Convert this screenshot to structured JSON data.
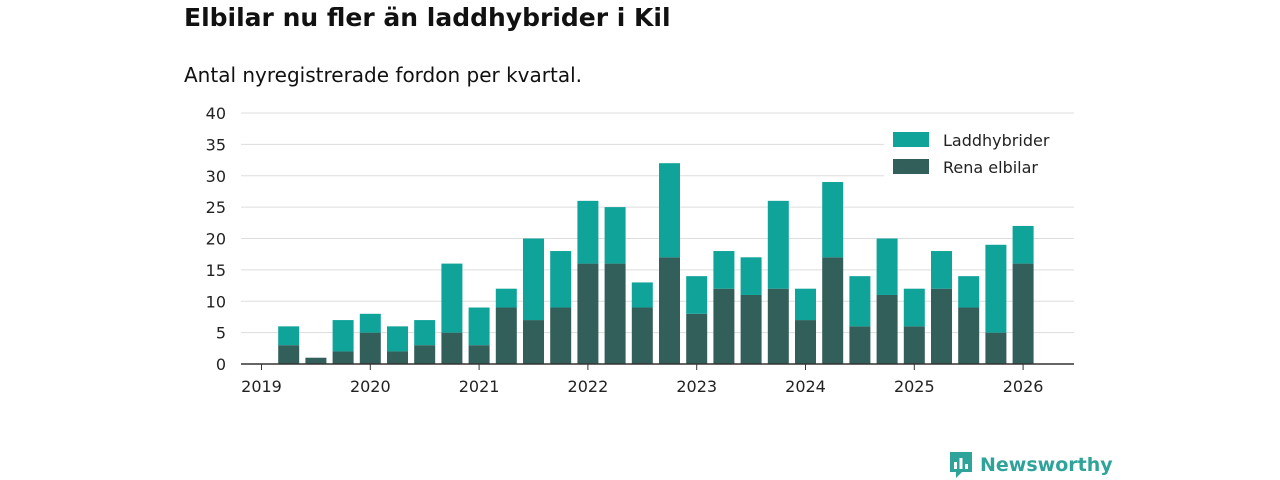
{
  "title": "Elbilar nu fler än laddhybrider i Kil",
  "subtitle": "Antal nyregistrerade fordon per kvartal.",
  "brand": {
    "name": "Newsworthy",
    "logo_icon": "newsworthy-logo-icon",
    "color": "#2ea39a"
  },
  "chart_data": {
    "type": "bar",
    "stacked": true,
    "title": "Elbilar nu fler än laddhybrider i Kil",
    "subtitle": "Antal nyregistrerade fordon per kvartal.",
    "xlabel": "",
    "ylabel": "",
    "ylim": [
      0,
      40
    ],
    "yticks": [
      0,
      5,
      10,
      15,
      20,
      25,
      30,
      35,
      40
    ],
    "grid": true,
    "legend_position": "top-right",
    "x_tick_labels": [
      {
        "label": "2019",
        "quarter_index": 0
      },
      {
        "label": "2020",
        "quarter_index": 4
      },
      {
        "label": "2021",
        "quarter_index": 8
      },
      {
        "label": "2022",
        "quarter_index": 12
      },
      {
        "label": "2023",
        "quarter_index": 16
      },
      {
        "label": "2024",
        "quarter_index": 20
      },
      {
        "label": "2025",
        "quarter_index": 24
      },
      {
        "label": "2026",
        "quarter_index": 28
      }
    ],
    "categories": [
      "2019 Q2",
      "2019 Q3",
      "2019 Q4",
      "2020 Q1",
      "2020 Q2",
      "2020 Q3",
      "2020 Q4",
      "2021 Q1",
      "2021 Q2",
      "2021 Q3",
      "2021 Q4",
      "2022 Q1",
      "2022 Q2",
      "2022 Q3",
      "2022 Q4",
      "2023 Q1",
      "2023 Q2",
      "2023 Q3",
      "2023 Q4",
      "2024 Q1",
      "2024 Q2",
      "2024 Q3",
      "2024 Q4",
      "2025 Q1",
      "2025 Q2",
      "2025 Q3",
      "2025 Q4",
      "2026 Q1"
    ],
    "series": [
      {
        "name": "Rena elbilar",
        "color": "#335f5a",
        "values": [
          3,
          1,
          2,
          5,
          2,
          3,
          5,
          3,
          9,
          7,
          9,
          16,
          16,
          9,
          17,
          8,
          12,
          11,
          12,
          7,
          17,
          6,
          11,
          6,
          12,
          9,
          5,
          16
        ]
      },
      {
        "name": "Laddhybrider",
        "color": "#0fa39a",
        "values": [
          3,
          0,
          5,
          3,
          4,
          4,
          11,
          6,
          3,
          13,
          9,
          10,
          9,
          4,
          15,
          6,
          6,
          6,
          14,
          5,
          12,
          8,
          9,
          6,
          6,
          5,
          14,
          6
        ]
      }
    ],
    "legend_order": [
      "Laddhybrider",
      "Rena elbilar"
    ]
  }
}
